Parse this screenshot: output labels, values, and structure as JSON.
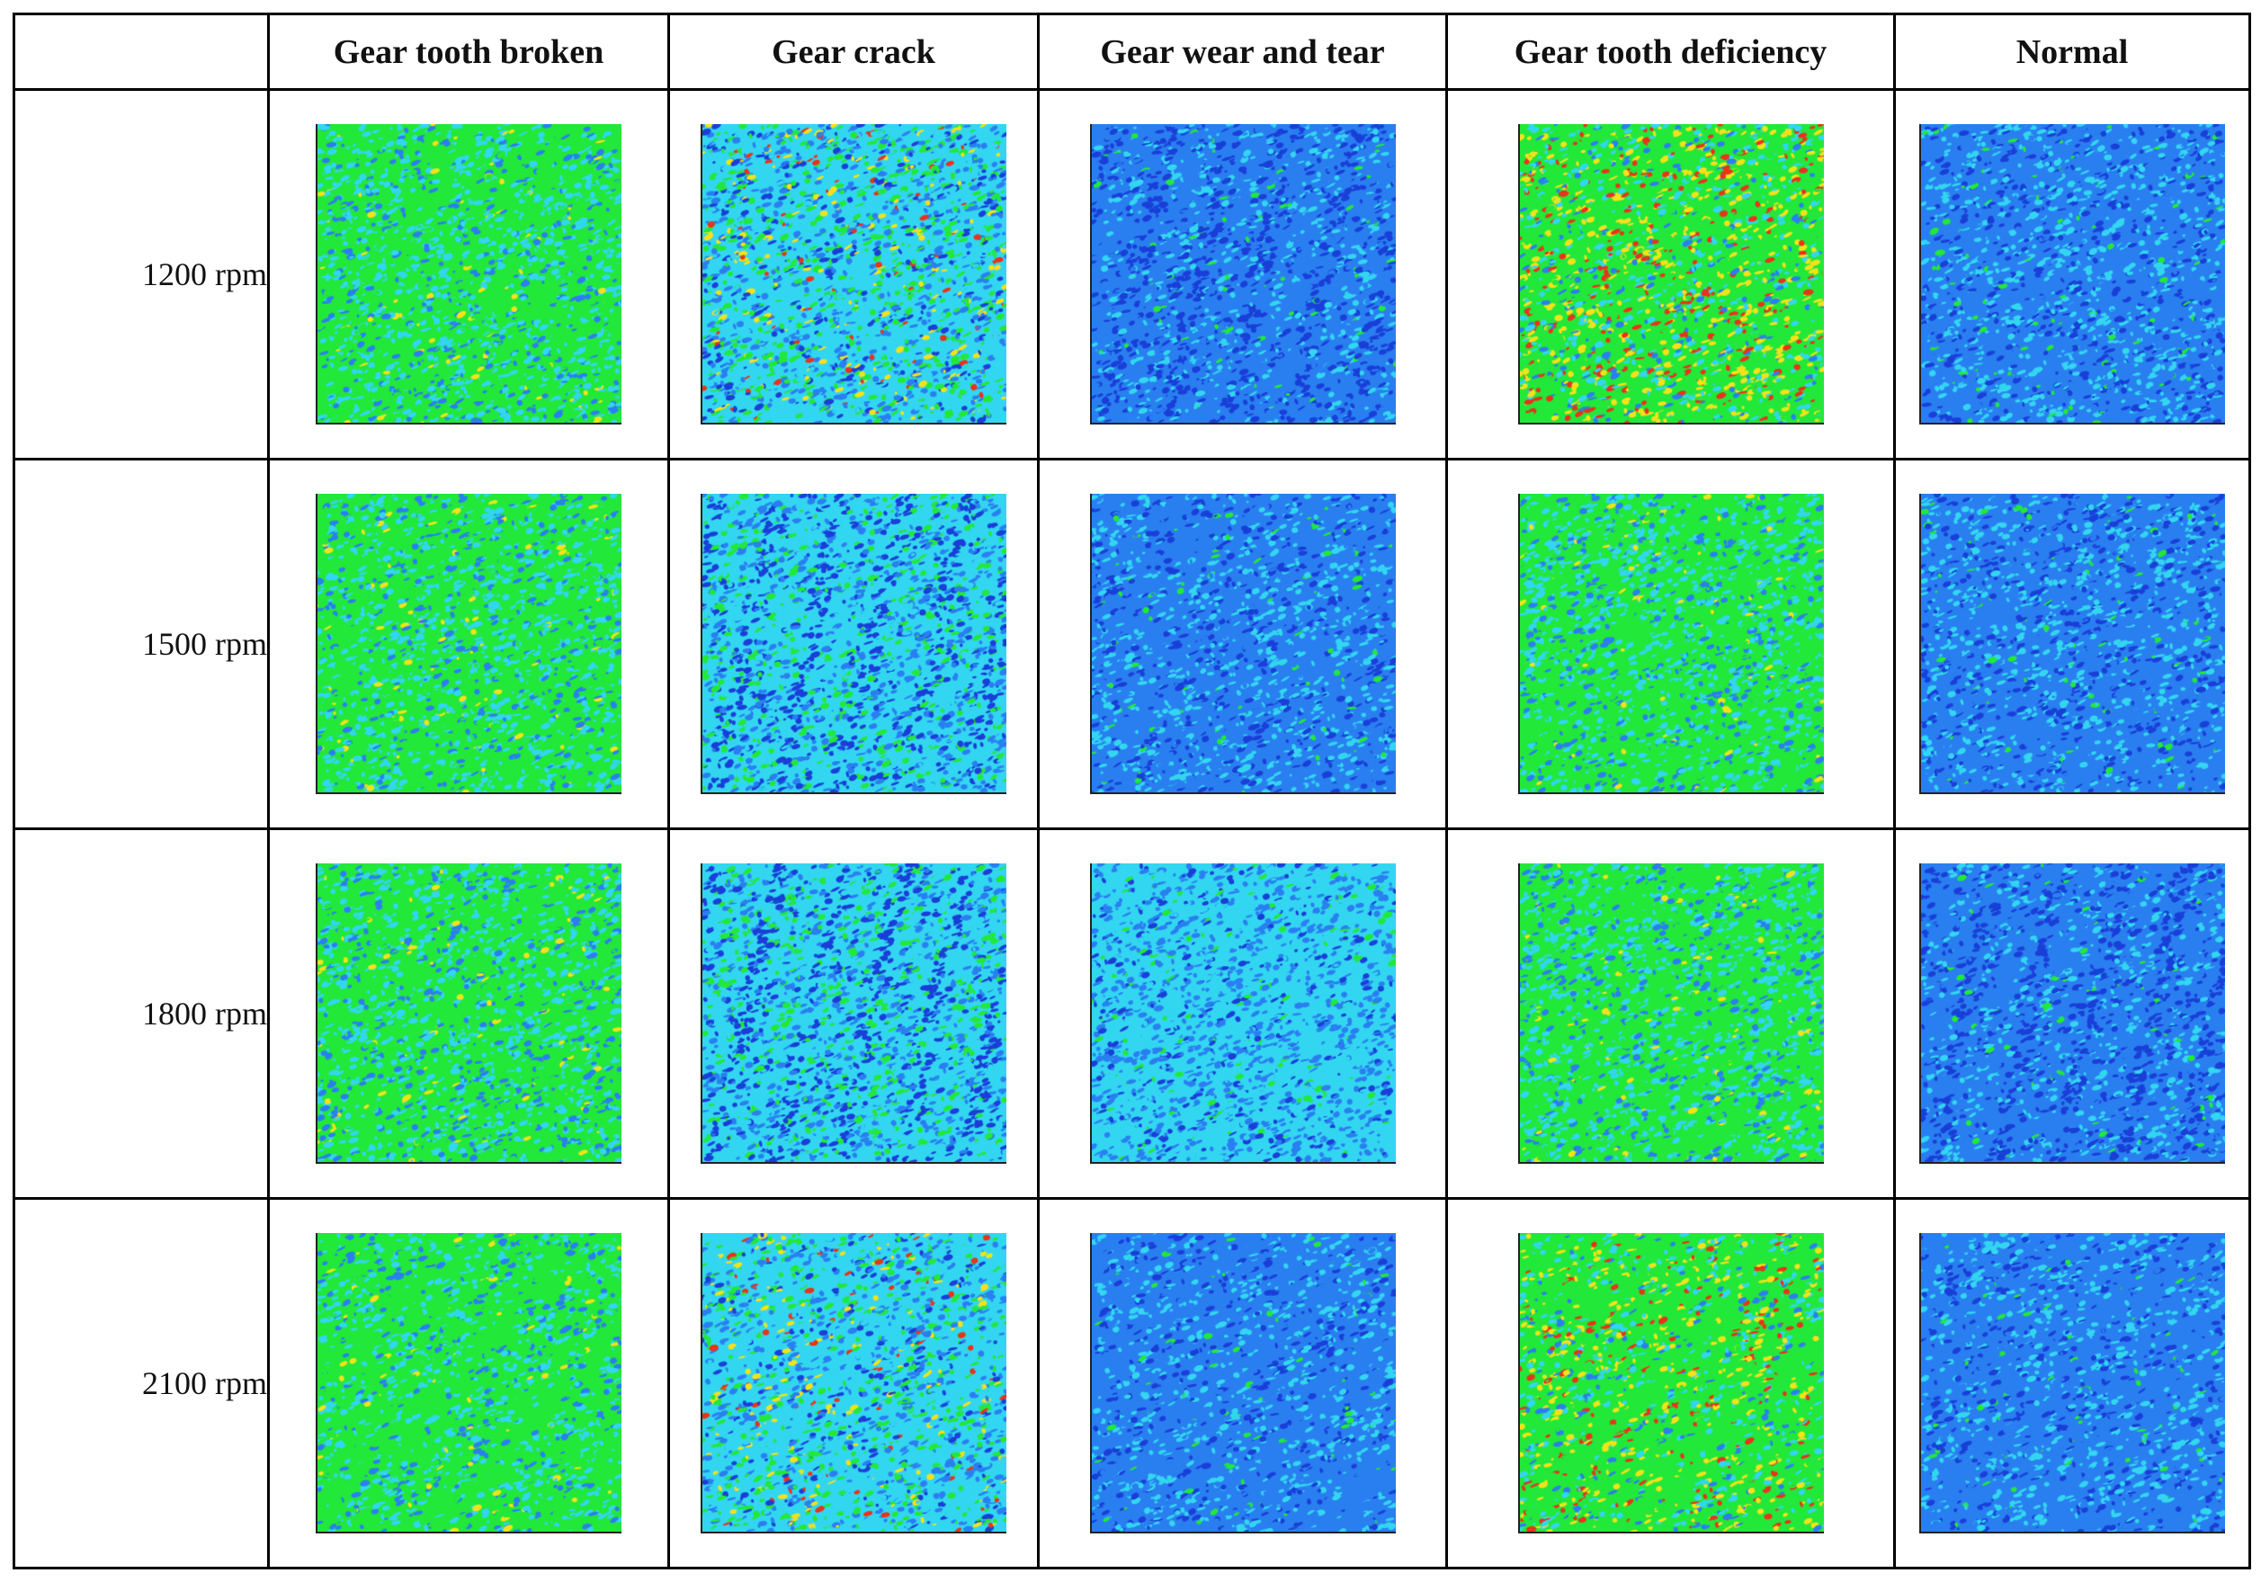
{
  "table": {
    "corner": "",
    "columns": [
      "Gear tooth broken",
      "Gear crack",
      "Gear wear and tear",
      "Gear tooth deficiency",
      "Normal"
    ],
    "rows": [
      "1200 rpm",
      "1500 rpm",
      "1800 rpm",
      "2100 rpm"
    ]
  },
  "colors": {
    "dark_blue": "#1a3fd8",
    "blue": "#2a7ff0",
    "cyan": "#33d6f0",
    "green": "#22e83a",
    "yellow": "#f2e21a",
    "red": "#e8341a"
  },
  "image_cells": [
    [
      {
        "tone": "green",
        "pattern": "speckle"
      },
      {
        "tone": "blue-green-hot",
        "pattern": "speckle"
      },
      {
        "tone": "blue",
        "pattern": "stripes"
      },
      {
        "tone": "green-hot",
        "pattern": "dots"
      },
      {
        "tone": "blue",
        "pattern": "speckle"
      }
    ],
    [
      {
        "tone": "green",
        "pattern": "speckle"
      },
      {
        "tone": "blue-green",
        "pattern": "stripes"
      },
      {
        "tone": "blue",
        "pattern": "speckle"
      },
      {
        "tone": "green",
        "pattern": "speckle"
      },
      {
        "tone": "blue",
        "pattern": "speckle"
      }
    ],
    [
      {
        "tone": "green",
        "pattern": "speckle"
      },
      {
        "tone": "blue-green",
        "pattern": "stripes"
      },
      {
        "tone": "cyan-blue",
        "pattern": "speckle"
      },
      {
        "tone": "green",
        "pattern": "speckle"
      },
      {
        "tone": "blue",
        "pattern": "stripes"
      }
    ],
    [
      {
        "tone": "green",
        "pattern": "diagonal"
      },
      {
        "tone": "blue-green-hot",
        "pattern": "diagonal"
      },
      {
        "tone": "blue",
        "pattern": "diagonal"
      },
      {
        "tone": "green-hot",
        "pattern": "diagonal"
      },
      {
        "tone": "blue",
        "pattern": "diagonal"
      }
    ]
  ]
}
